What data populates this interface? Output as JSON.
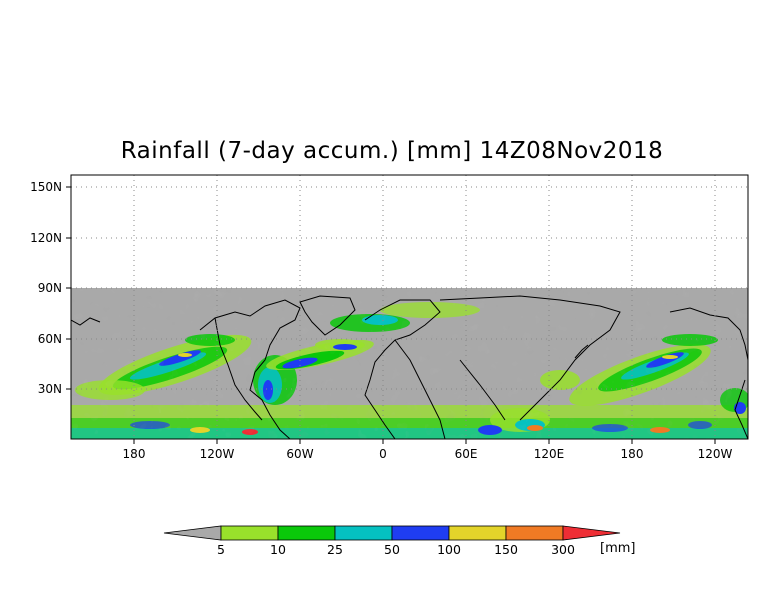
{
  "title": "Rainfall (7-day accum.) [mm] 14Z08Nov2018",
  "map": {
    "projection": "cylindrical",
    "lon_labels": [
      "180",
      "120W",
      "60W",
      "0",
      "60E",
      "120E",
      "180",
      "120W"
    ],
    "lat_labels": [
      "150N",
      "120N",
      "90N",
      "60N",
      "30N"
    ],
    "no_data_color": "#a9a9a9",
    "grid": "dotted"
  },
  "colorbar": {
    "levels": [
      "5",
      "10",
      "25",
      "50",
      "100",
      "150",
      "300"
    ],
    "unit": "[mm]",
    "colors": [
      "#a9a9a9",
      "#99e12b",
      "#0ac80a",
      "#05c1c1",
      "#1f3df2",
      "#e3d42a",
      "#f07a24",
      "#ee2e35"
    ]
  }
}
